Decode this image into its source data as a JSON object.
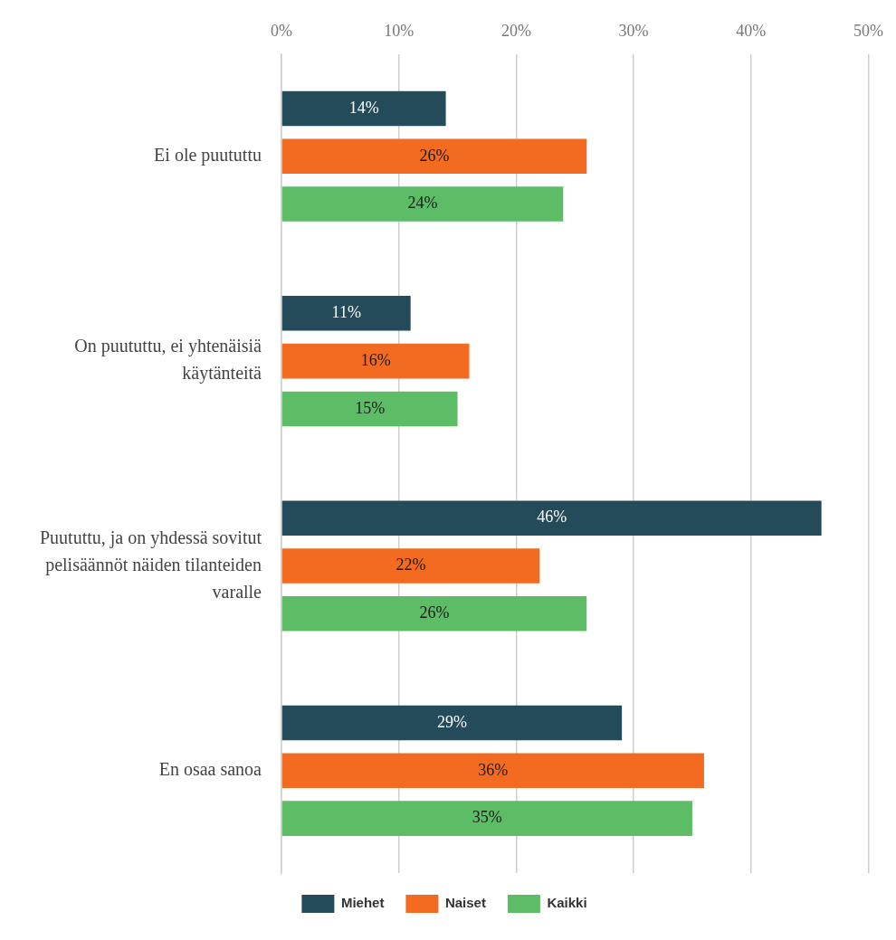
{
  "chart_data": {
    "type": "bar",
    "orientation": "horizontal",
    "categories": [
      "Ei ole puututtu",
      "On puututtu, ei yhtenäisiä käytänteitä",
      "Puututtu, ja on yhdessä sovitut pelisäännöt näiden tilanteiden varalle",
      "En osaa sanoa"
    ],
    "series": [
      {
        "name": "Miehet",
        "color": "#234b5a",
        "values": [
          14,
          11,
          46,
          29
        ],
        "value_labels": [
          "14%",
          "11%",
          "46%",
          "29%"
        ]
      },
      {
        "name": "Naiset",
        "color": "#f26b21",
        "values": [
          26,
          16,
          22,
          36
        ],
        "value_labels": [
          "26%",
          "16%",
          "22%",
          "36%"
        ]
      },
      {
        "name": "Kaikki",
        "color": "#5cbd66",
        "values": [
          24,
          15,
          26,
          35
        ],
        "value_labels": [
          "24%",
          "15%",
          "26%",
          "35%"
        ]
      }
    ],
    "xlim": [
      0,
      50
    ],
    "xticks": [
      {
        "value": 0,
        "label": "0%"
      },
      {
        "value": 10,
        "label": "10%"
      },
      {
        "value": 20,
        "label": "20%"
      },
      {
        "value": 30,
        "label": "30%"
      },
      {
        "value": 40,
        "label": "40%"
      },
      {
        "value": 50,
        "label": "50%"
      }
    ],
    "grid": "x",
    "legend": "bottom"
  }
}
